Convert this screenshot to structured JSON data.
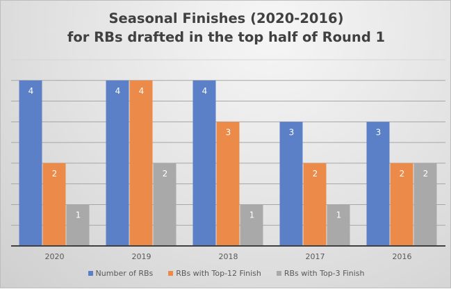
{
  "chart_data": {
    "type": "bar",
    "title": [
      "Seasonal Finishes (2020-2016)",
      "for RBs drafted in the top half of Round 1"
    ],
    "categories": [
      "2020",
      "2019",
      "2018",
      "2017",
      "2016"
    ],
    "series": [
      {
        "name": "Number of RBs",
        "color": "#5b80c8",
        "values": [
          4,
          4,
          4,
          3,
          3
        ]
      },
      {
        "name": "RBs with Top-12 Finish",
        "color": "#ec8a49",
        "values": [
          2,
          4,
          3,
          2,
          2
        ]
      },
      {
        "name": "RBs with Top-3 Finish",
        "color": "#a9a9a9",
        "values": [
          1,
          2,
          1,
          1,
          2
        ]
      }
    ],
    "ylim": [
      0,
      4.5
    ],
    "grid_step": 0.5,
    "grid": true,
    "legend": "bottom",
    "xlabel": "",
    "ylabel": ""
  }
}
